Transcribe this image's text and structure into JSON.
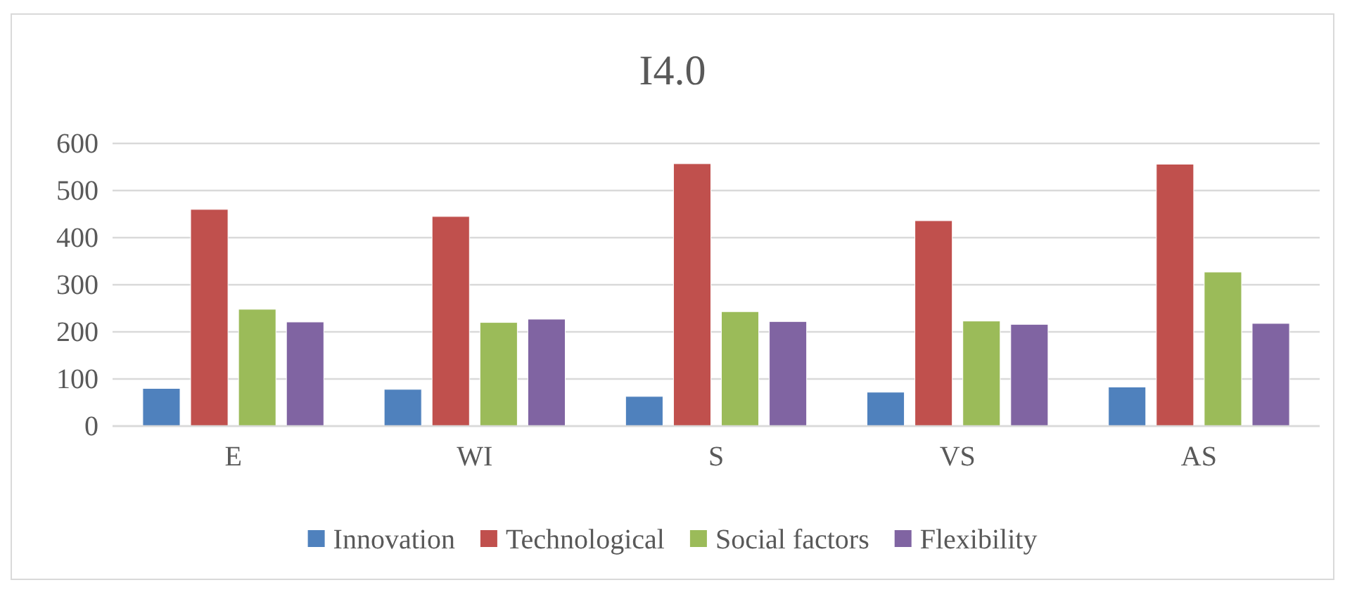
{
  "chart_data": {
    "type": "bar",
    "title": "I4.0",
    "categories": [
      "E",
      "WI",
      "S",
      "VS",
      "AS"
    ],
    "series": [
      {
        "name": "Innovation",
        "color": "#4f81bd",
        "values": [
          80,
          78,
          63,
          72,
          83
        ]
      },
      {
        "name": "Technological",
        "color": "#c0504d",
        "values": [
          460,
          445,
          557,
          436,
          556
        ]
      },
      {
        "name": "Social factors",
        "color": "#9bbb59",
        "values": [
          248,
          220,
          243,
          223,
          327
        ]
      },
      {
        "name": "Flexibility",
        "color": "#8064a2",
        "values": [
          221,
          227,
          222,
          216,
          218
        ]
      }
    ],
    "ylim": [
      0,
      600
    ],
    "yticks": [
      0,
      100,
      200,
      300,
      400,
      500,
      600
    ],
    "grid": "y",
    "legend": "bottom"
  }
}
